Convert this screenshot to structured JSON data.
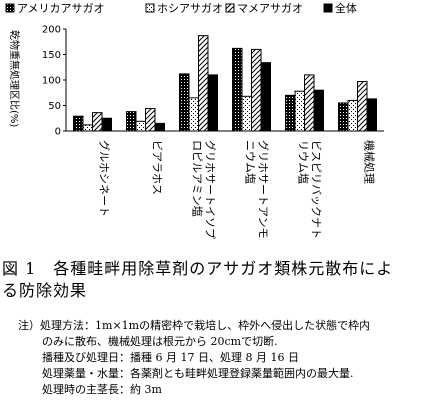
{
  "chart_data": {
    "type": "bar",
    "ylabel": "乾物重無処理区比(%)",
    "ylim": [
      0,
      200
    ],
    "yticks": [
      0,
      50,
      100,
      150,
      200
    ],
    "categories": [
      "グルホシネート",
      "ビアラホス",
      "グリホサートイソプロピルアミン塩",
      "グリホサートアンモニウム塩",
      "ビスピリバックナトリウム塩",
      "機械処理"
    ],
    "category_lines": [
      [
        "グルホシネート"
      ],
      [
        "ビアラホス"
      ],
      [
        "グリホサートイソプ",
        "ロピルアミン塩"
      ],
      [
        "グリホサートアンモ",
        "ニウム塩"
      ],
      [
        "ビスピリバックナト",
        "リウム塩"
      ],
      [
        "機械処理"
      ]
    ],
    "series": [
      {
        "name": "アメリカアサガオ",
        "pattern": "hatch-black",
        "values": [
          29,
          38,
          112,
          162,
          70,
          55
        ]
      },
      {
        "name": "ホシアサガオ",
        "pattern": "dots",
        "values": [
          12,
          19,
          65,
          68,
          78,
          60
        ]
      },
      {
        "name": "マメアサガオ",
        "pattern": "diagonal",
        "values": [
          36,
          44,
          187,
          160,
          110,
          97
        ]
      },
      {
        "name": "全体",
        "pattern": "solid",
        "values": [
          25,
          15,
          110,
          134,
          80,
          63
        ]
      }
    ],
    "legend_position": "top"
  },
  "caption": {
    "line1": "図 1　各種畦畔用除草剤のアサガオ類株元散布によ",
    "line2": "る防除効果"
  },
  "notes": {
    "line1": "注）処理方法：1m×1mの精密枠で栽培し、枠外へ侵出した状態で枠内",
    "line2": "のみに散布、機械処理は根元から 20cmで切断.",
    "line3": "播種及び処理日：播種 6 月 17 日、処理 8 月 16 日",
    "line4": "処理薬量・水量：各薬剤とも畦畔処理登録薬量範囲内の最大量.",
    "line5": "処理時の主茎長：約 3m"
  }
}
